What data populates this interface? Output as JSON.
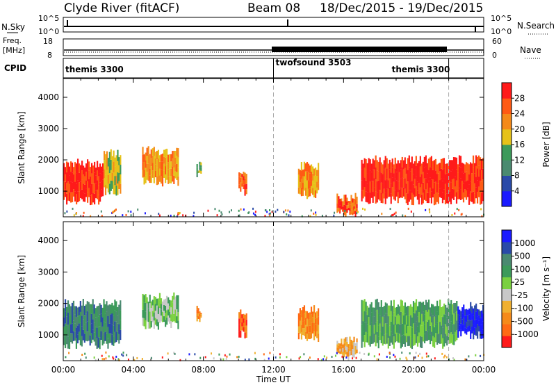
{
  "header": {
    "title": "Clyde River (fitACF)",
    "beam": "Beam 08",
    "date_range": "18/Dec/2015 - 19/Dec/2015"
  },
  "top_panels": {
    "nsky_label": "N.Sky",
    "nsky_ticks": [
      "10^5",
      "10^0"
    ],
    "nsearch_label": "N.Search",
    "nsearch_ticks": [
      "10^5",
      "10^0"
    ],
    "freq_label": "Freq.",
    "freq_unit": "[MHz]",
    "freq_ticks": [
      "18",
      "8"
    ],
    "nave_label": "Nave",
    "nave_ticks": [
      "60",
      "0"
    ],
    "cpid_label": "CPID",
    "cpid_segments": [
      {
        "name": "themis 3300",
        "start": 0,
        "end": 12
      },
      {
        "name": "twofsound 3503",
        "start": 12,
        "end": 22
      },
      {
        "name": "themis 3300",
        "start": 22,
        "end": 24
      }
    ]
  },
  "colors": {
    "power": [
      "#1a1aff",
      "#2a4aa8",
      "#4a8a70",
      "#3c9a5a",
      "#e6c21a",
      "#f58a1a",
      "#ff5a14",
      "#ff1a1a"
    ],
    "velocity": [
      "#ff1a1a",
      "#ff6a14",
      "#f58a1a",
      "#f0b030",
      "#c8c8c8",
      "#7ad040",
      "#3c9a5a",
      "#4a8a70",
      "#2a4aa8",
      "#1a1aff"
    ]
  },
  "colorbars": {
    "power": {
      "title": "Power [dB]",
      "ticks": [
        "28",
        "24",
        "20",
        "16",
        "12",
        "8",
        "4"
      ]
    },
    "velocity": {
      "title": "Velocity [m s⁻¹]",
      "ticks": [
        "1000",
        "500",
        "100",
        "25",
        "-25",
        "-100",
        "-500",
        "-1000"
      ]
    }
  },
  "chart_data": [
    {
      "type": "heatmap",
      "name": "power",
      "ylabel": "Slant Range [km]",
      "ylim": [
        180,
        4600
      ],
      "xlim": [
        0,
        24
      ],
      "yticks": [
        1000,
        2000,
        3000,
        4000
      ],
      "xticks": [
        0,
        4,
        8,
        12,
        16,
        20,
        24
      ],
      "colorbar_range": [
        0,
        30
      ],
      "patches": [
        {
          "t0": 0.0,
          "t1": 2.3,
          "r0": 700,
          "r1": 1900,
          "level": 7
        },
        {
          "t0": 2.3,
          "t1": 3.3,
          "r0": 1000,
          "r1": 2200,
          "level": 4
        },
        {
          "t0": 4.5,
          "t1": 6.6,
          "r0": 1300,
          "r1": 2300,
          "level": 5
        },
        {
          "t0": 7.6,
          "t1": 7.9,
          "r0": 1500,
          "r1": 1800,
          "level": 3
        },
        {
          "t0": 10.0,
          "t1": 10.5,
          "r0": 1000,
          "r1": 1700,
          "level": 6
        },
        {
          "t0": 13.4,
          "t1": 14.6,
          "r0": 900,
          "r1": 1800,
          "level": 5
        },
        {
          "t0": 15.6,
          "t1": 16.8,
          "r0": 300,
          "r1": 800,
          "level": 6
        },
        {
          "t0": 17.0,
          "t1": 24.0,
          "r0": 700,
          "r1": 2000,
          "level": 7
        }
      ]
    },
    {
      "type": "heatmap",
      "name": "velocity",
      "ylabel": "Slant Range [km]",
      "xlabel": "Time UT",
      "ylim": [
        180,
        4600
      ],
      "xlim": [
        0,
        24
      ],
      "yticks": [
        1000,
        2000,
        3000,
        4000
      ],
      "xticks": [
        0,
        4,
        8,
        12,
        16,
        20,
        24
      ],
      "xticklabels": [
        "00:00",
        "04:00",
        "08:00",
        "12:00",
        "16:00",
        "20:00",
        "00:00"
      ],
      "colorbar_range": [
        -1000,
        1000
      ],
      "patches": [
        {
          "t0": 0.0,
          "t1": 3.3,
          "r0": 700,
          "r1": 2000,
          "level": 7
        },
        {
          "t0": 4.5,
          "t1": 6.6,
          "r0": 1300,
          "r1": 2200,
          "level": 5
        },
        {
          "t0": 7.6,
          "t1": 7.9,
          "r0": 1500,
          "r1": 1800,
          "level": 2
        },
        {
          "t0": 10.0,
          "t1": 10.5,
          "r0": 1000,
          "r1": 1700,
          "level": 1
        },
        {
          "t0": 13.4,
          "t1": 14.6,
          "r0": 900,
          "r1": 1800,
          "level": 2
        },
        {
          "t0": 15.6,
          "t1": 16.8,
          "r0": 300,
          "r1": 800,
          "level": 3
        },
        {
          "t0": 17.0,
          "t1": 22.5,
          "r0": 700,
          "r1": 2000,
          "level": 6
        },
        {
          "t0": 22.5,
          "t1": 24.0,
          "r0": 1000,
          "r1": 1900,
          "level": 9
        }
      ]
    }
  ]
}
